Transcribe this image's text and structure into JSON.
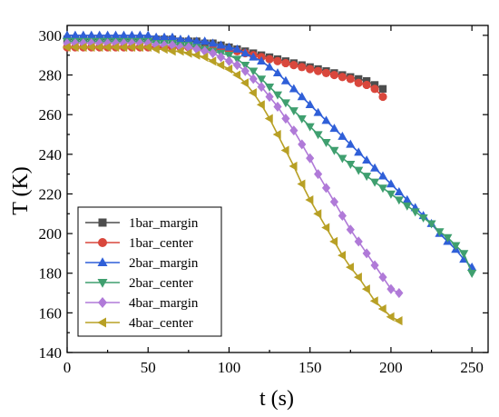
{
  "chart_data": {
    "type": "line",
    "xlabel": "t (s)",
    "ylabel": "T (K)",
    "xlim": [
      0,
      260
    ],
    "ylim": [
      140,
      305
    ],
    "xticks": [
      0,
      50,
      100,
      150,
      200,
      250
    ],
    "yticks": [
      140,
      160,
      180,
      200,
      220,
      240,
      260,
      280,
      300
    ],
    "legend_position": "bottom-left",
    "series": [
      {
        "name": "1bar_margin",
        "color": "#4d4d4d",
        "marker": "square",
        "x": [
          0,
          5,
          10,
          15,
          20,
          25,
          30,
          35,
          40,
          45,
          50,
          55,
          60,
          65,
          70,
          75,
          80,
          85,
          90,
          95,
          100,
          105,
          110,
          115,
          120,
          125,
          130,
          135,
          140,
          145,
          150,
          155,
          160,
          165,
          170,
          175,
          180,
          185,
          190,
          195
        ],
        "y": [
          298,
          298,
          298,
          298,
          298,
          298,
          298,
          298,
          298,
          298,
          298,
          298,
          298,
          298,
          297,
          297,
          297,
          296,
          296,
          295,
          294,
          293,
          292,
          291,
          290,
          289,
          288,
          287,
          286,
          285,
          284,
          283,
          282,
          281,
          280,
          279,
          278,
          277,
          275,
          273
        ]
      },
      {
        "name": "1bar_center",
        "color": "#d9473c",
        "marker": "circle",
        "x": [
          0,
          5,
          10,
          15,
          20,
          25,
          30,
          35,
          40,
          45,
          50,
          55,
          60,
          65,
          70,
          75,
          80,
          85,
          90,
          95,
          100,
          105,
          110,
          115,
          120,
          125,
          130,
          135,
          140,
          145,
          150,
          155,
          160,
          165,
          170,
          175,
          180,
          185,
          190,
          195
        ],
        "y": [
          294,
          294,
          294,
          294,
          294,
          294,
          294,
          294,
          294,
          294,
          294,
          294,
          294,
          294,
          294,
          294,
          294,
          293,
          293,
          293,
          292,
          292,
          291,
          290,
          289,
          288,
          287,
          286,
          285,
          284,
          283,
          282,
          281,
          280,
          279,
          278,
          276,
          275,
          273,
          269
        ]
      },
      {
        "name": "2bar_margin",
        "color": "#2f5fd8",
        "marker": "triangle-up",
        "x": [
          0,
          5,
          10,
          15,
          20,
          25,
          30,
          35,
          40,
          45,
          50,
          55,
          60,
          65,
          70,
          75,
          80,
          85,
          90,
          95,
          100,
          105,
          110,
          115,
          120,
          125,
          130,
          135,
          140,
          145,
          150,
          155,
          160,
          165,
          170,
          175,
          180,
          185,
          190,
          195,
          200,
          205,
          210,
          215,
          220,
          225,
          230,
          235,
          240,
          245,
          250
        ],
        "y": [
          300,
          300,
          300,
          300,
          300,
          300,
          300,
          300,
          300,
          300,
          300,
          299,
          299,
          299,
          298,
          298,
          297,
          297,
          296,
          295,
          294,
          293,
          291,
          289,
          287,
          284,
          281,
          277,
          273,
          269,
          265,
          261,
          257,
          253,
          249,
          245,
          241,
          237,
          233,
          229,
          225,
          221,
          217,
          213,
          209,
          205,
          200,
          196,
          192,
          187,
          183
        ]
      },
      {
        "name": "2bar_center",
        "color": "#3f9f6f",
        "marker": "triangle-down",
        "x": [
          0,
          5,
          10,
          15,
          20,
          25,
          30,
          35,
          40,
          45,
          50,
          55,
          60,
          65,
          70,
          75,
          80,
          85,
          90,
          95,
          100,
          105,
          110,
          115,
          120,
          125,
          130,
          135,
          140,
          145,
          150,
          155,
          160,
          165,
          170,
          175,
          180,
          185,
          190,
          195,
          200,
          205,
          210,
          215,
          220,
          225,
          230,
          235,
          240,
          245,
          250
        ],
        "y": [
          297,
          297,
          297,
          297,
          297,
          297,
          297,
          297,
          297,
          297,
          297,
          296,
          296,
          296,
          295,
          295,
          294,
          293,
          292,
          291,
          290,
          288,
          285,
          282,
          278,
          274,
          270,
          266,
          262,
          258,
          254,
          250,
          246,
          242,
          238,
          235,
          232,
          229,
          226,
          223,
          220,
          217,
          214,
          211,
          208,
          205,
          201,
          198,
          194,
          190,
          180
        ]
      },
      {
        "name": "4bar_margin",
        "color": "#b07ad8",
        "marker": "diamond",
        "x": [
          0,
          5,
          10,
          15,
          20,
          25,
          30,
          35,
          40,
          45,
          50,
          55,
          60,
          65,
          70,
          75,
          80,
          85,
          90,
          95,
          100,
          105,
          110,
          115,
          120,
          125,
          130,
          135,
          140,
          145,
          150,
          155,
          160,
          165,
          170,
          175,
          180,
          185,
          190,
          195,
          200,
          205
        ],
        "y": [
          296,
          296,
          296,
          296,
          296,
          296,
          296,
          296,
          296,
          296,
          296,
          295,
          295,
          295,
          294,
          294,
          293,
          292,
          291,
          289,
          287,
          285,
          282,
          278,
          274,
          269,
          264,
          258,
          252,
          245,
          238,
          230,
          223,
          216,
          209,
          202,
          196,
          190,
          184,
          178,
          172,
          170
        ]
      },
      {
        "name": "4bar_center",
        "color": "#b8a025",
        "marker": "triangle-left",
        "x": [
          0,
          5,
          10,
          15,
          20,
          25,
          30,
          35,
          40,
          45,
          50,
          55,
          60,
          65,
          70,
          75,
          80,
          85,
          90,
          95,
          100,
          105,
          110,
          115,
          120,
          125,
          130,
          135,
          140,
          145,
          150,
          155,
          160,
          165,
          170,
          175,
          180,
          185,
          190,
          195,
          200,
          205
        ],
        "y": [
          294,
          294,
          294,
          294,
          294,
          294,
          294,
          294,
          294,
          294,
          294,
          293,
          293,
          292,
          292,
          291,
          290,
          289,
          287,
          285,
          283,
          280,
          276,
          271,
          265,
          258,
          250,
          242,
          234,
          225,
          217,
          210,
          203,
          196,
          189,
          183,
          178,
          172,
          166,
          162,
          158,
          156
        ]
      }
    ]
  }
}
